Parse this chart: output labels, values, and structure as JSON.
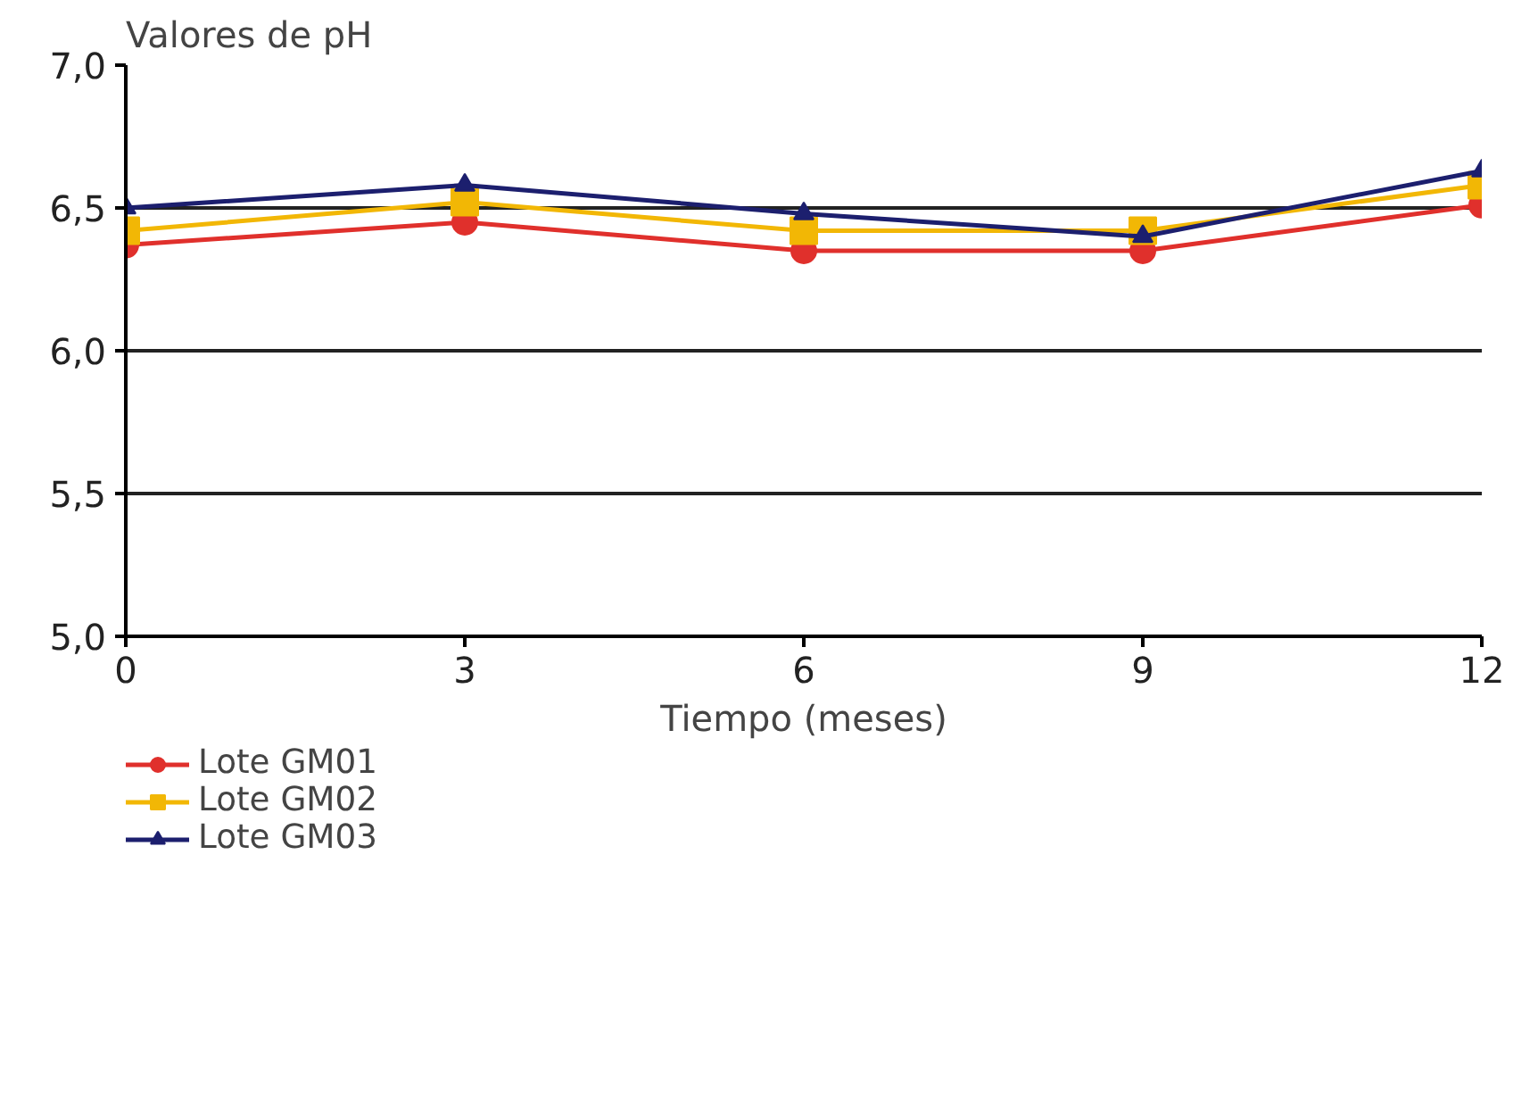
{
  "chart_data": {
    "type": "line",
    "xlabel": "Tiempo (meses)",
    "ylabel": "Valores de pH",
    "x": [
      0,
      3,
      6,
      9,
      12
    ],
    "series": [
      {
        "name": "Lote GM01",
        "color": "#e0302c",
        "marker": "circle",
        "values": [
          6.37,
          6.45,
          6.35,
          6.35,
          6.51
        ]
      },
      {
        "name": "Lote GM02",
        "color": "#f2b705",
        "marker": "square",
        "values": [
          6.42,
          6.52,
          6.42,
          6.42,
          6.58
        ]
      },
      {
        "name": "Lote GM03",
        "color": "#1c1f6e",
        "marker": "triangle",
        "values": [
          6.5,
          6.58,
          6.48,
          6.4,
          6.63
        ]
      }
    ],
    "xlim": [
      0,
      12
    ],
    "xticks": [
      0,
      3,
      6,
      9,
      12
    ],
    "ylim": [
      5,
      7
    ],
    "yticks": [
      {
        "value": 5,
        "label": "5,0"
      },
      {
        "value": 5.5,
        "label": "5,5"
      },
      {
        "value": 6,
        "label": "6,0"
      },
      {
        "value": 6.5,
        "label": "6,5"
      },
      {
        "value": 7,
        "label": "7,0"
      }
    ],
    "grid": "y",
    "legend": "bottom left",
    "line_style": "solid"
  }
}
